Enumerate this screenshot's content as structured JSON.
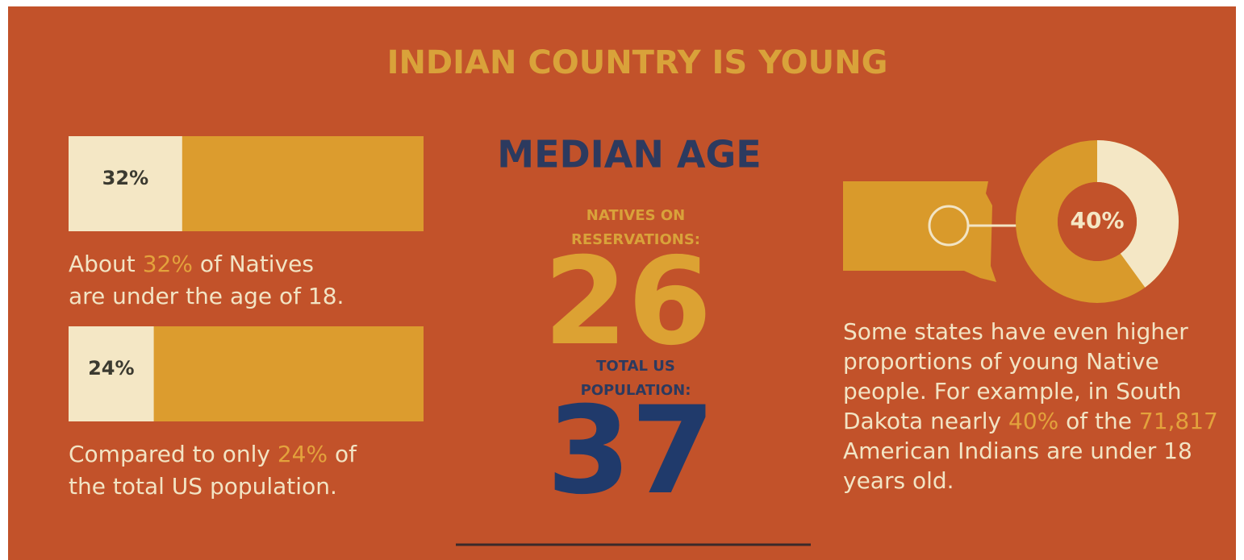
{
  "title": "INDIAN COUNTRY IS YOUNG",
  "bars": [
    {
      "value": 32,
      "label": "32%",
      "caption": [
        [
          "About ",
          "32%",
          " of Natives"
        ],
        [
          "are under the age of 18."
        ]
      ]
    },
    {
      "value": 24,
      "label": "24%",
      "caption": [
        [
          "Compared to only ",
          "24%",
          " of"
        ],
        [
          "the total US population."
        ]
      ]
    }
  ],
  "median_age": {
    "heading": "MEDIAN AGE",
    "natives": {
      "label": [
        "NATIVES ON",
        "RESERVATIONS:"
      ],
      "value": "26"
    },
    "total": {
      "label": [
        "TOTAL US",
        "POPULATION:"
      ],
      "value": "37"
    }
  },
  "donut": {
    "value": 40,
    "label": "40%"
  },
  "paragraph": [
    [
      "Some states have even higher"
    ],
    [
      "proportions of young Native"
    ],
    [
      "people. For example, in South"
    ],
    [
      "Dakota nearly ",
      "40%",
      " of the ",
      "71,817"
    ],
    [
      "American Indians are under 18"
    ],
    [
      "years old."
    ]
  ]
}
